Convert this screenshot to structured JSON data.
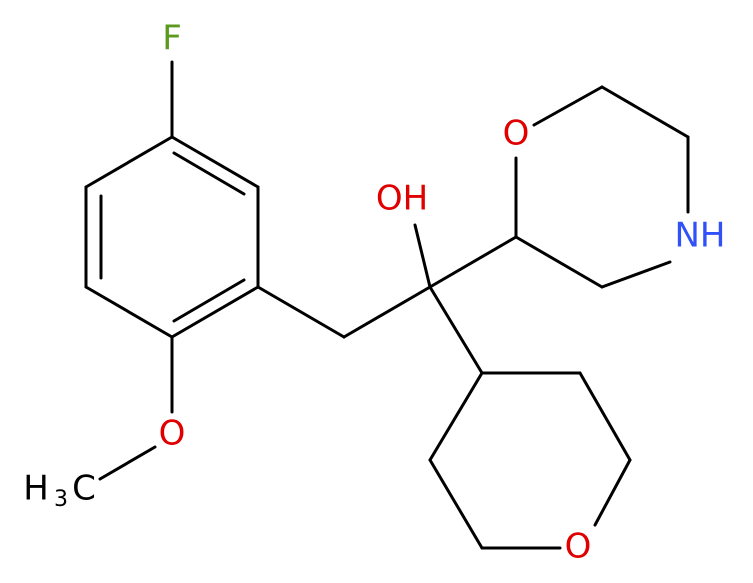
{
  "atoms": [
    {
      "label": "F"
    },
    {
      "label": "O"
    },
    {
      "label": "H"
    },
    {
      "label": "3"
    },
    {
      "label": "C"
    },
    {
      "label": "OH"
    },
    {
      "label": "O"
    },
    {
      "label": "NH"
    },
    {
      "label": "O"
    }
  ]
}
